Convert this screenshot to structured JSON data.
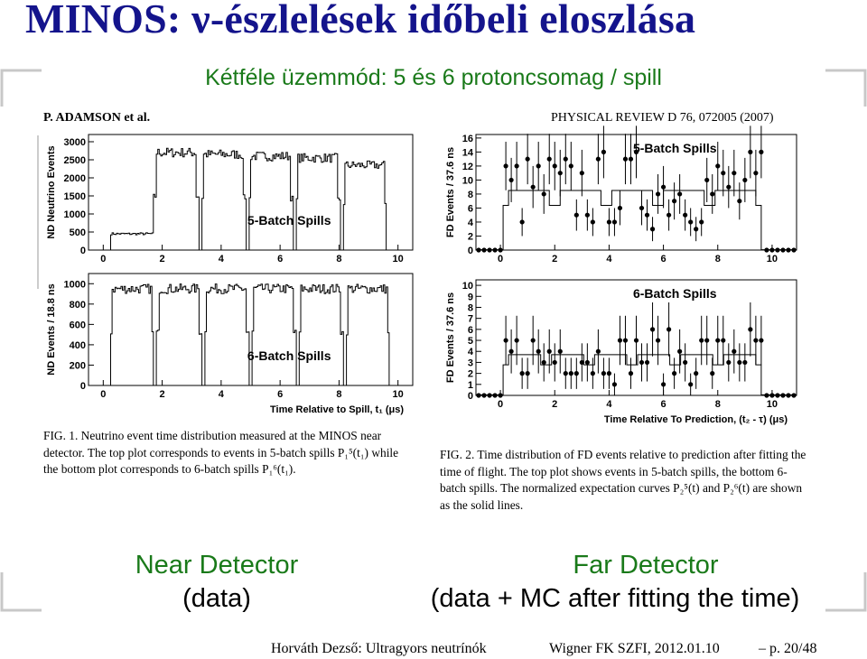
{
  "slide": {
    "title": "MINOS: ν-észlelések időbeli eloszlása",
    "subtitle": "Kétféle üzemmód: 5 és 6 protoncsomag / spill"
  },
  "paper_header": {
    "left": "P. ADAMSON et al.",
    "right": "PHYSICAL REVIEW D 76, 072005 (2007)"
  },
  "captions": {
    "fig1": "FIG. 1.  Neutrino event time distribution measured at the MINOS near detector. The top plot corresponds to events in 5-batch spills P₁⁵(t₁) while the bottom plot corresponds to 6-batch spills P₁⁶(t₁).",
    "fig2": "FIG. 2.  Time distribution of FD events relative to prediction after fitting the time of flight. The top plot shows events in 5-batch spills, the bottom 6-batch spills. The normalized expectation curves P₂⁵(t) and P₂⁶(t) are shown as the solid lines."
  },
  "labels": {
    "near_title": "Near Detector",
    "near_sub": "(data)",
    "far_title": "Far Detector",
    "far_sub": "(data + MC after fitting the time)"
  },
  "footer": {
    "author": "Horváth Dezső: Ultragyors neutrínók",
    "venue": "Wigner FK SZFI, 2012.01.10",
    "page": "– p. 20/48"
  },
  "chart_data": [
    {
      "type": "line",
      "panel_label": "5-Batch Spills",
      "ylabel": "ND Neutrino Events",
      "xlim": [
        -0.5,
        10.5
      ],
      "ylim": [
        0,
        3200
      ],
      "x_ticks": [
        0,
        2,
        4,
        6,
        8,
        10
      ],
      "y_ticks": [
        0,
        500,
        1000,
        1500,
        2000,
        2500,
        3000
      ],
      "batches": [
        {
          "start": 1.7,
          "end": 3.2,
          "level": 2700
        },
        {
          "start": 3.3,
          "end": 4.8,
          "level": 2650
        },
        {
          "start": 4.9,
          "end": 6.4,
          "level": 2600
        },
        {
          "start": 6.5,
          "end": 8.0,
          "level": 2550
        },
        {
          "start": 8.1,
          "end": 9.6,
          "level": 2350
        }
      ],
      "prebatch": {
        "start": 0.2,
        "end": 1.7,
        "level": 450
      }
    },
    {
      "type": "line",
      "panel_label": "6-Batch Spills",
      "ylabel": "ND Events / 18.8 ns",
      "xlabel": "Time Relative to Spill, t₁ (μs)",
      "xlim": [
        -0.5,
        10.5
      ],
      "ylim": [
        0,
        1100
      ],
      "x_ticks": [
        0,
        2,
        4,
        6,
        8,
        10
      ],
      "y_ticks": [
        0,
        200,
        400,
        600,
        800,
        1000
      ],
      "batches": [
        {
          "start": 0.2,
          "end": 1.7,
          "level": 950
        },
        {
          "start": 1.8,
          "end": 3.3,
          "level": 950
        },
        {
          "start": 3.4,
          "end": 4.9,
          "level": 950
        },
        {
          "start": 5.0,
          "end": 6.5,
          "level": 950
        },
        {
          "start": 6.6,
          "end": 8.1,
          "level": 950
        },
        {
          "start": 8.2,
          "end": 9.7,
          "level": 950
        }
      ]
    },
    {
      "type": "scatter",
      "panel_label": "5-Batch Spills",
      "ylabel": "FD Events / 37.6 ns",
      "xlim": [
        -0.9,
        10.9
      ],
      "ylim": [
        0,
        16.5
      ],
      "x_ticks": [
        0,
        2,
        4,
        6,
        8,
        10
      ],
      "y_ticks": [
        0,
        2,
        4,
        6,
        8,
        10,
        12,
        14,
        16
      ],
      "expectation_level": 8.5
    },
    {
      "type": "scatter",
      "panel_label": "6-Batch Spills",
      "ylabel": "FD Events / 37.6 ns",
      "xlabel": "Time Relative To Prediction, (t₂ - τ) (μs)",
      "xlim": [
        -0.9,
        10.9
      ],
      "ylim": [
        0,
        10.5
      ],
      "x_ticks": [
        0,
        2,
        4,
        6,
        8,
        10
      ],
      "y_ticks": [
        0,
        1,
        2,
        3,
        4,
        5,
        6,
        7,
        8,
        9,
        10
      ],
      "expectation_level": 3.7
    }
  ]
}
